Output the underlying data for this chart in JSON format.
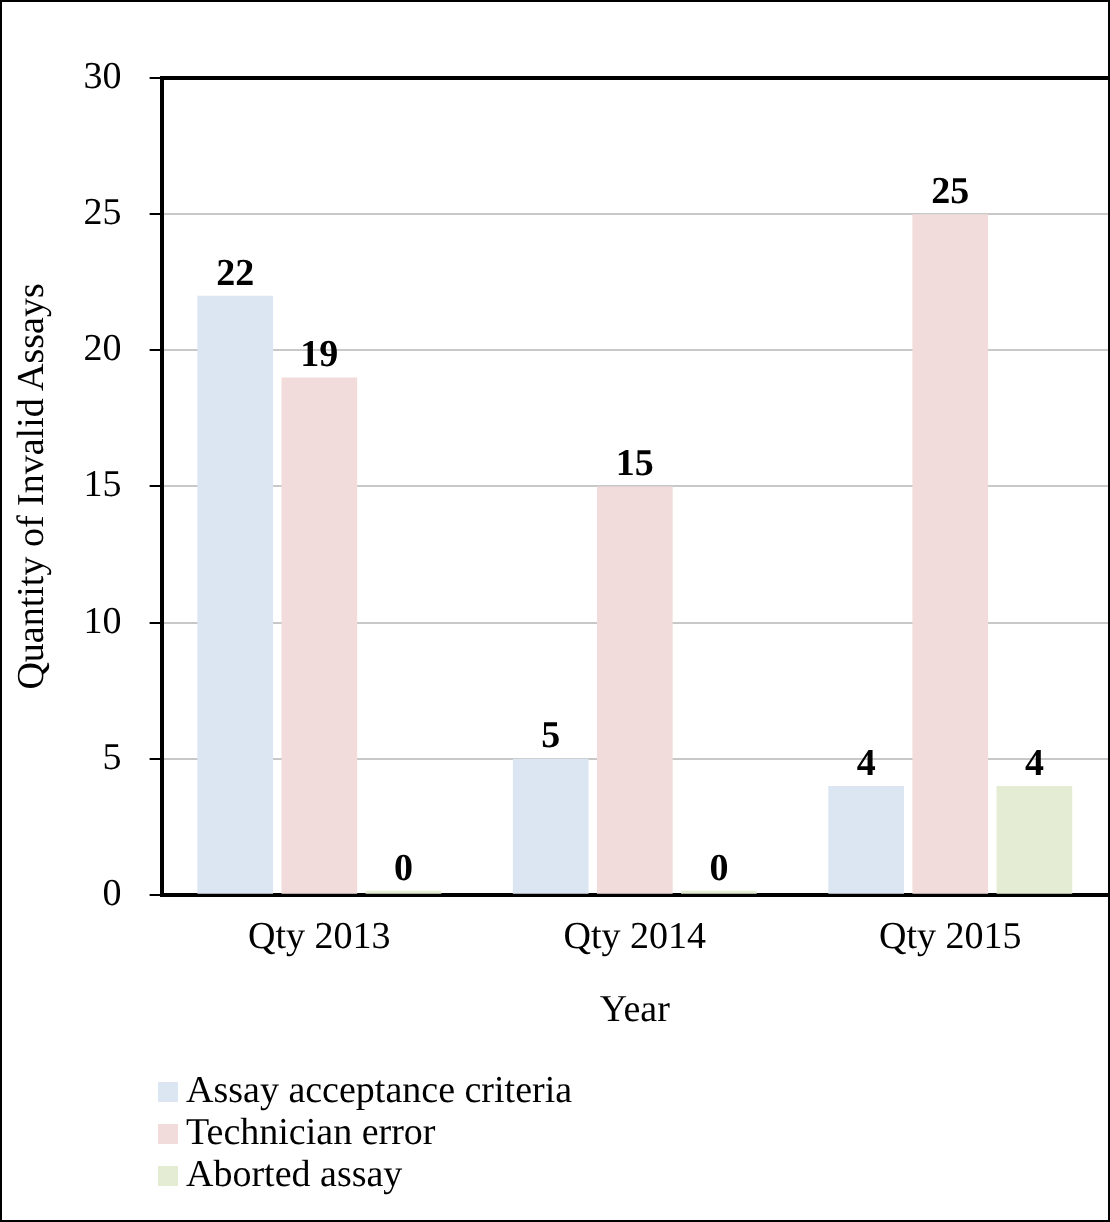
{
  "chart_data": {
    "type": "bar",
    "xlabel": "Year",
    "ylabel": "Quantity of Invalid Assays",
    "categories": [
      "Qty 2013",
      "Qty 2014",
      "Qty 2015"
    ],
    "series": [
      {
        "name": "Assay acceptance criteria",
        "color": "#dce6f2",
        "values": [
          22,
          5,
          4
        ]
      },
      {
        "name": "Technician error",
        "color": "#f2dcdb",
        "values": [
          19,
          15,
          25
        ]
      },
      {
        "name": "Aborted assay",
        "color": "#e4ecd4",
        "values": [
          0,
          0,
          4
        ]
      }
    ],
    "ylim": [
      0,
      30
    ],
    "yticks": [
      0,
      5,
      10,
      15,
      20,
      25,
      30
    ],
    "grid": "y",
    "legend": "bottom",
    "data_labels": true
  }
}
